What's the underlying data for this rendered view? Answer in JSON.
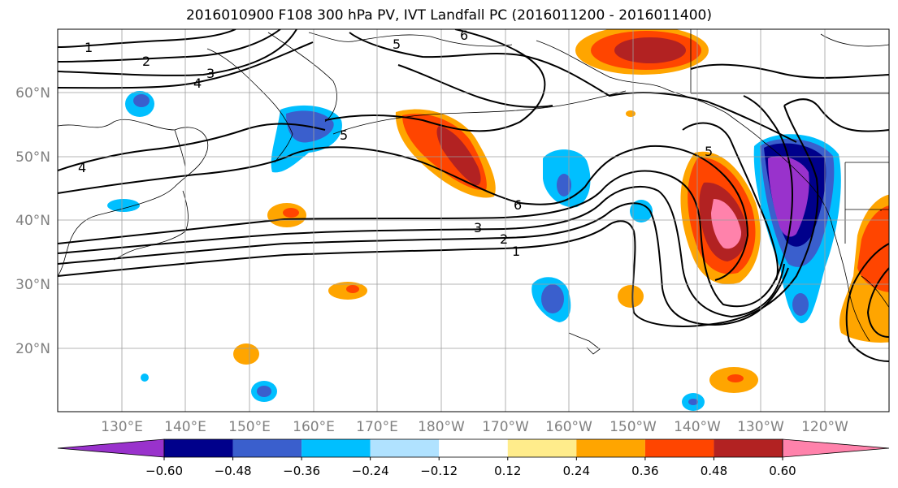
{
  "title": "2016010900 F108 300 hPa PV, IVT Landfall PC (2016011200 - 2016011400)",
  "lon_ticks": [
    "130°E",
    "140°E",
    "150°E",
    "160°E",
    "170°E",
    "180°W",
    "170°W",
    "160°W",
    "150°W",
    "140°W",
    "130°W",
    "120°W"
  ],
  "lat_ticks": [
    "20°N",
    "30°N",
    "40°N",
    "50°N",
    "60°N"
  ],
  "contour_labels": [
    "1",
    "2",
    "3",
    "4",
    "4",
    "5",
    "5",
    "5",
    "6",
    "6",
    "3",
    "2",
    "1"
  ],
  "colorbar": {
    "tick_labels": [
      "−0.60",
      "−0.48",
      "−0.36",
      "−0.24",
      "−0.12",
      "0.12",
      "0.24",
      "0.36",
      "0.48",
      "0.60"
    ],
    "colors": [
      "#9932cc",
      "#00008b",
      "#3a5fcd",
      "#00bfff",
      "#b0e2ff",
      "#ffffff",
      "#ffec8b",
      "#ffa500",
      "#ff4500",
      "#b22222",
      "#ff82ab"
    ],
    "extend": "both"
  }
}
